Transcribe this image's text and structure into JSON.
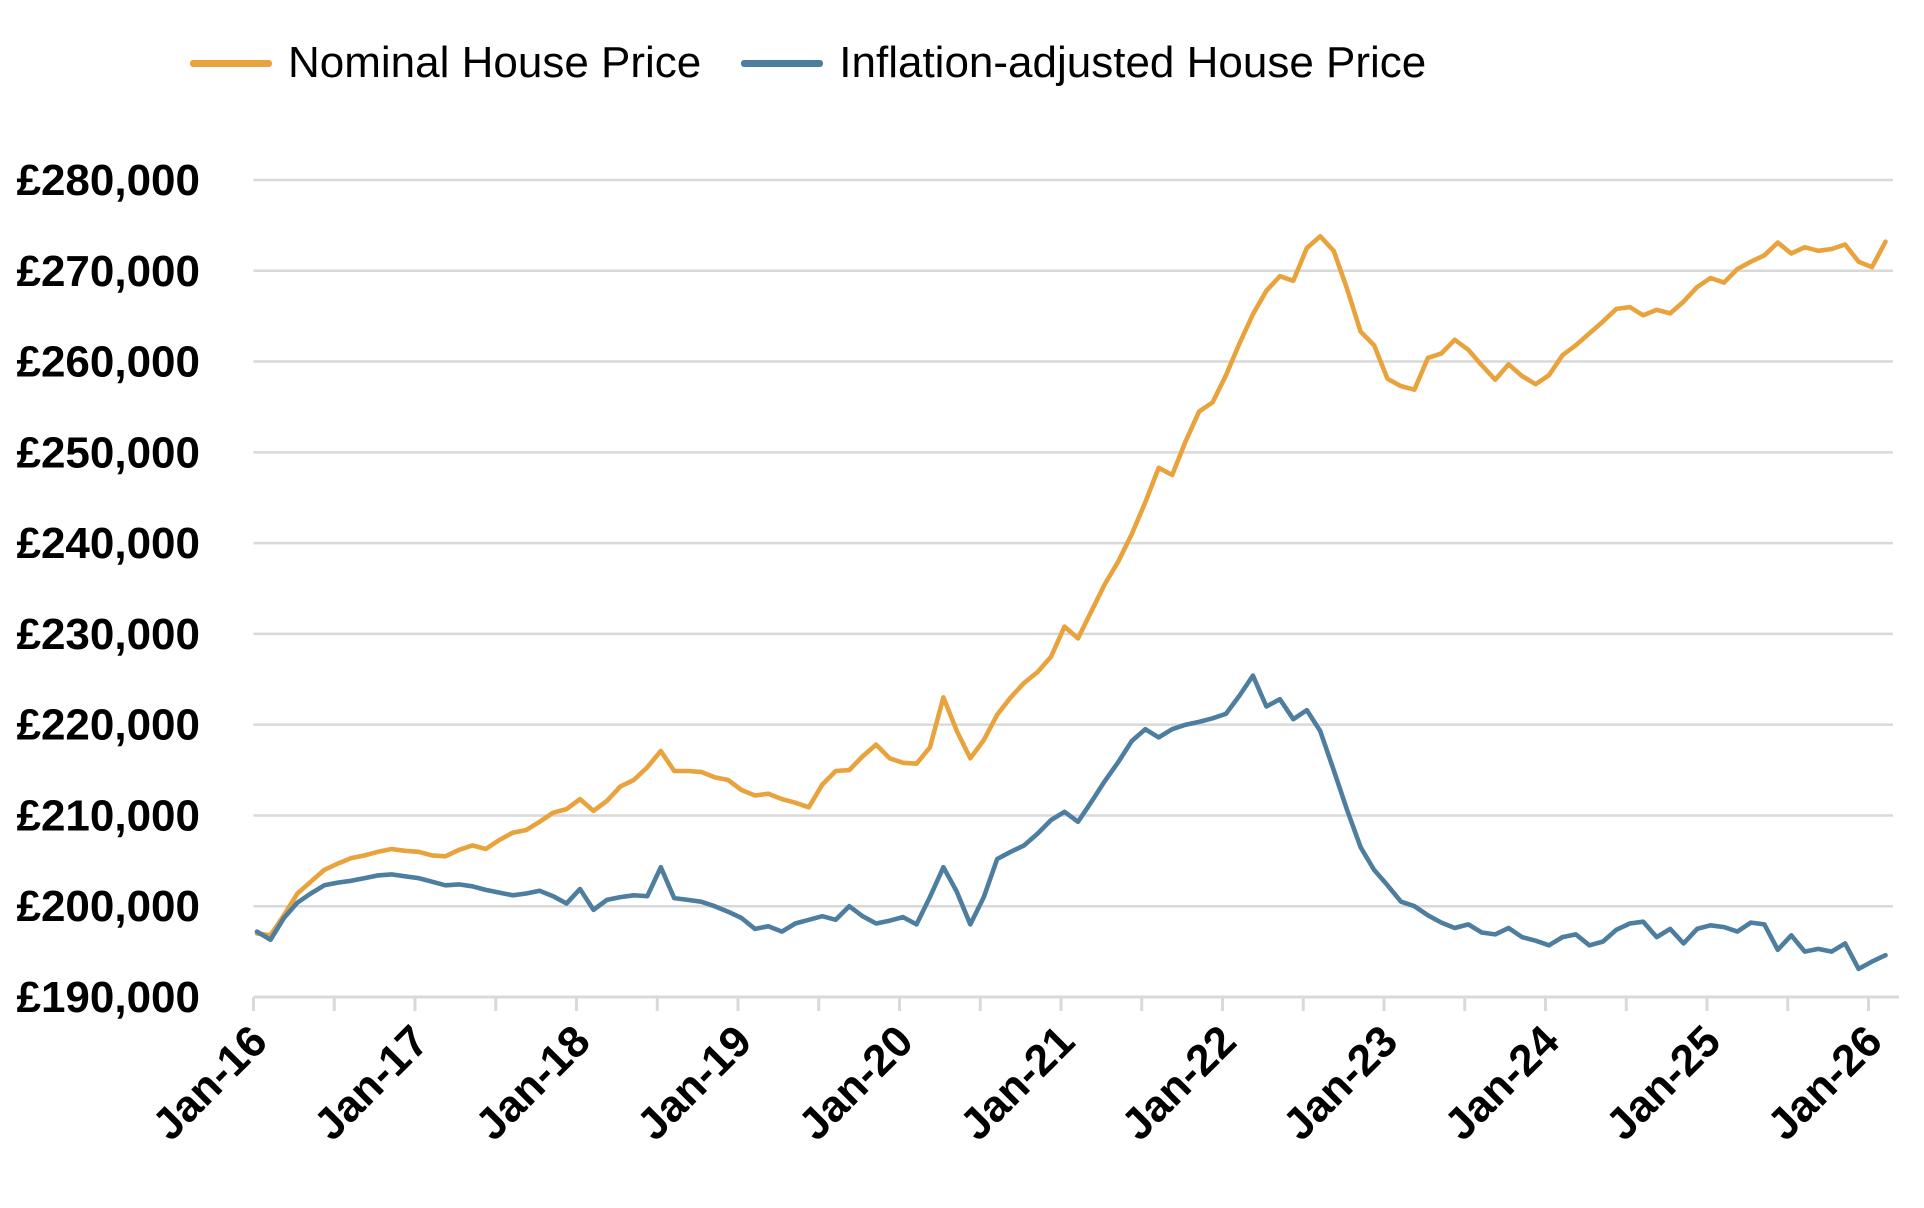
{
  "chart_data": {
    "type": "line",
    "title": "",
    "x_start_label": "Jan-16",
    "x_end_label": "Feb-26",
    "frequency": "monthly",
    "points_per_series": 122,
    "x_tick_labels": [
      "Jan-16",
      "Jan-17",
      "Jan-18",
      "Jan-19",
      "Jan-20",
      "Jan-21",
      "Jan-22",
      "Jan-23",
      "Jan-24",
      "Jan-25",
      "Jan-26"
    ],
    "y_tick_labels": [
      "£190,000",
      "£200,000",
      "£210,000",
      "£220,000",
      "£230,000",
      "£240,000",
      "£250,000",
      "£260,000",
      "£270,000",
      "£280,000"
    ],
    "ylim": [
      190000,
      280000
    ],
    "y_step": 10000,
    "grid": "horizontal",
    "legend_position": "top",
    "axis_color": "#D9D9D9",
    "series": [
      {
        "name": "Nominal House Price",
        "color": "#E8A33D",
        "values": [
          197000,
          196800,
          199000,
          201400,
          202700,
          204000,
          204700,
          205300,
          205600,
          206000,
          206300,
          206100,
          206000,
          205600,
          205500,
          206200,
          206700,
          206300,
          207300,
          208100,
          208400,
          209300,
          210300,
          210700,
          211800,
          210500,
          211600,
          213200,
          213900,
          215300,
          217100,
          214900,
          214900,
          214800,
          214200,
          213900,
          212800,
          212200,
          212400,
          211800,
          211400,
          210900,
          213400,
          214900,
          215000,
          216500,
          217800,
          216300,
          215800,
          215700,
          217500,
          223000,
          219300,
          216300,
          218300,
          221100,
          223000,
          224600,
          225800,
          227500,
          230800,
          229500,
          232500,
          235500,
          238000,
          241000,
          244500,
          248300,
          247500,
          251200,
          254500,
          255500,
          258500,
          262000,
          265200,
          267800,
          269400,
          268900,
          272500,
          273800,
          272200,
          268000,
          263300,
          261800,
          258100,
          257300,
          256900,
          260400,
          260900,
          262400,
          261300,
          259600,
          258000,
          259700,
          258400,
          257500,
          258500,
          260700,
          261800,
          263100,
          264400,
          265800,
          266000,
          265100,
          265700,
          265300,
          266600,
          268200,
          269200,
          268700,
          270200,
          271000,
          271700,
          273100,
          271900,
          272600,
          272200,
          272400,
          272900,
          271000,
          270400,
          273200
        ]
      },
      {
        "name": "Inflation-adjusted House Price",
        "color": "#4D7E9F",
        "values": [
          197200,
          196300,
          198700,
          200400,
          201400,
          202300,
          202600,
          202800,
          203100,
          203400,
          203500,
          203300,
          203100,
          202700,
          202300,
          202400,
          202200,
          201800,
          201500,
          201200,
          201400,
          201700,
          201100,
          200300,
          201900,
          199600,
          200700,
          201000,
          201200,
          201100,
          204300,
          200900,
          200700,
          200500,
          200000,
          199400,
          198700,
          197500,
          197800,
          197200,
          198100,
          198500,
          198900,
          198500,
          200000,
          198900,
          198100,
          198400,
          198800,
          198000,
          201000,
          204300,
          201600,
          198000,
          201000,
          205200,
          206000,
          206700,
          208000,
          209500,
          210400,
          209300,
          211500,
          213800,
          215900,
          218200,
          219500,
          218600,
          219500,
          220000,
          220300,
          220700,
          221200,
          223200,
          225400,
          222000,
          222800,
          220600,
          221600,
          219300,
          215000,
          210600,
          206500,
          204000,
          202300,
          200500,
          200000,
          199000,
          198200,
          197600,
          198000,
          197100,
          196900,
          197600,
          196600,
          196200,
          195700,
          196600,
          196900,
          195700,
          196100,
          197400,
          198100,
          198300,
          196600,
          197500,
          195900,
          197500,
          197900,
          197700,
          197200,
          198200,
          198000,
          195200,
          196800,
          195000,
          195300,
          195000,
          195900,
          193100,
          193900,
          194600
        ]
      }
    ]
  }
}
